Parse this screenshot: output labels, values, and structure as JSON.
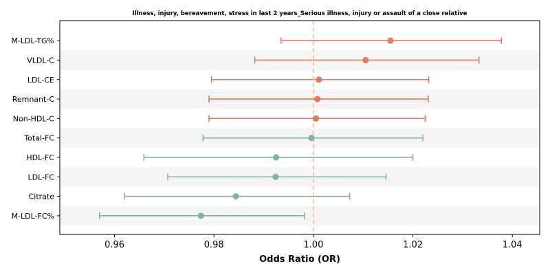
{
  "chart_data": {
    "type": "forest",
    "title": "Illness, injury, bereavement, stress in last 2 years_Serious illness, injury or assault of a close relative",
    "xlabel": "Odds Ratio (OR)",
    "ylabel": "",
    "xlim": [
      0.949,
      1.0455
    ],
    "xticks": [
      0.96,
      0.98,
      1.0,
      1.02,
      1.04
    ],
    "xtick_labels": [
      "0.96",
      "0.98",
      "1.00",
      "1.02",
      "1.04"
    ],
    "reference_line": 1.0,
    "grid": false,
    "alternating_row_bands": true,
    "colors": {
      "positive": "#E07B5F",
      "negative": "#82B49C",
      "reference": "#F4C27A",
      "band": "#F5F5F5"
    },
    "rows": [
      {
        "label": "M-LDL-TG%",
        "or": 1.0155,
        "ci_low": 0.9935,
        "ci_high": 1.0378,
        "color": "positive"
      },
      {
        "label": "VLDL-C",
        "or": 1.0105,
        "ci_low": 0.9882,
        "ci_high": 1.0333,
        "color": "positive"
      },
      {
        "label": "LDL-CE",
        "or": 1.0011,
        "ci_low": 0.9795,
        "ci_high": 1.0232,
        "color": "positive"
      },
      {
        "label": "Remnant-C",
        "or": 1.0008,
        "ci_low": 0.979,
        "ci_high": 1.0231,
        "color": "positive"
      },
      {
        "label": "Non-HDL-C",
        "or": 1.0005,
        "ci_low": 0.979,
        "ci_high": 1.0225,
        "color": "positive"
      },
      {
        "label": "Total-FC",
        "or": 0.9996,
        "ci_low": 0.9778,
        "ci_high": 1.022,
        "color": "negative"
      },
      {
        "label": "HDL-FC",
        "or": 0.9925,
        "ci_low": 0.9659,
        "ci_high": 1.02,
        "color": "negative"
      },
      {
        "label": "LDL-FC",
        "or": 0.9924,
        "ci_low": 0.9707,
        "ci_high": 1.0146,
        "color": "negative"
      },
      {
        "label": "Citrate",
        "or": 0.9844,
        "ci_low": 0.962,
        "ci_high": 1.0073,
        "color": "negative"
      },
      {
        "label": "M-LDL-FC%",
        "or": 0.9774,
        "ci_low": 0.957,
        "ci_high": 0.9982,
        "color": "negative"
      }
    ]
  }
}
